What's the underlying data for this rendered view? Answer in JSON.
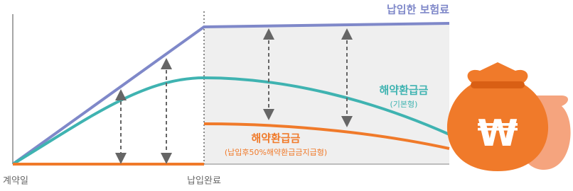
{
  "labels": {
    "paid_premium": "납입한 보험료",
    "refund_basic": "해약환급금",
    "refund_basic_note": "(기본형)",
    "refund_variant": "해약환급금",
    "refund_variant_note": "(납입후50%해약환급금지급형)",
    "start": "계약일",
    "paid_complete": "납입완료",
    "currency_symbol": "₩"
  }
}
